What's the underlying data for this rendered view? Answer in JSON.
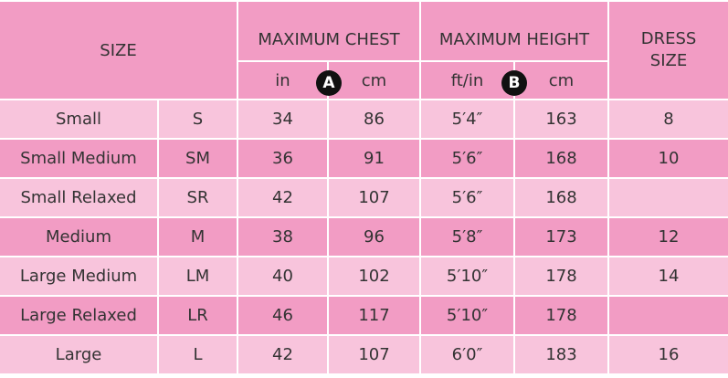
{
  "header": {
    "size": "SIZE",
    "chest": {
      "title": "MAXIMUM CHEST",
      "badge": "A",
      "units": [
        "in",
        "cm"
      ]
    },
    "height": {
      "title": "MAXIMUM HEIGHT",
      "badge": "B",
      "units": [
        "ft/in",
        "cm"
      ]
    },
    "dress": "DRESS SIZE"
  },
  "rows": [
    [
      "Small",
      "S",
      34,
      86,
      "5′4″",
      163,
      8
    ],
    [
      "Small Medium",
      "SM",
      36,
      91,
      "5′6″",
      168,
      10
    ],
    [
      "Small Relaxed",
      "SR",
      42,
      107,
      "5′6″",
      168,
      null
    ],
    [
      "Medium",
      "M",
      38,
      96,
      "5′8″",
      173,
      12
    ],
    [
      "Large Medium",
      "LM",
      40,
      102,
      "5′10″",
      178,
      14
    ],
    [
      "Large Relaxed",
      "LR",
      46,
      117,
      "5′10″",
      178,
      null
    ],
    [
      "Large",
      "L",
      42,
      107,
      "6′0″",
      183,
      16
    ]
  ]
}
